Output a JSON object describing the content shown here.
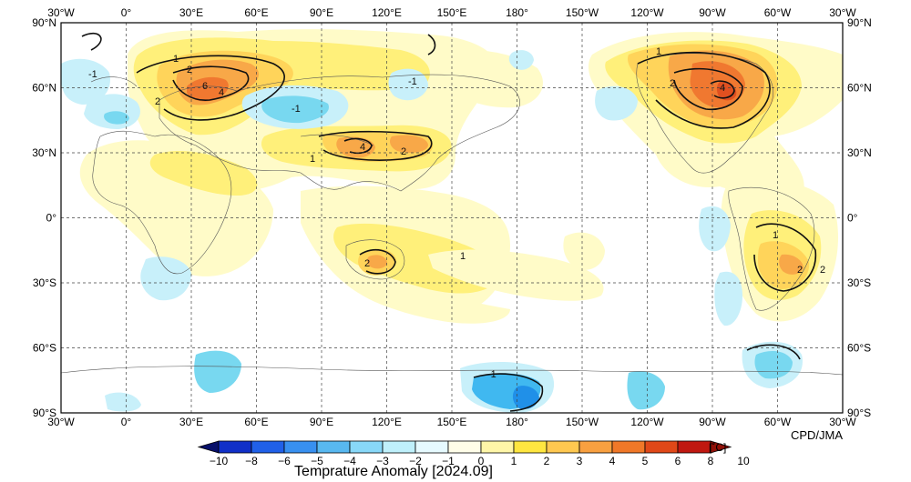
{
  "map": {
    "top_axis_labels": [
      "30°W",
      "0°",
      "30°E",
      "60°E",
      "90°E",
      "120°E",
      "150°E",
      "180°",
      "150°W",
      "120°W",
      "90°W",
      "60°W",
      "30°W"
    ],
    "bottom_axis_labels": [
      "30°W",
      "0°",
      "30°E",
      "60°E",
      "90°E",
      "120°E",
      "150°E",
      "180°",
      "150°W",
      "120°W",
      "90°W",
      "60°W",
      "30°W"
    ],
    "left_axis_labels": [
      "90°N",
      "60°N",
      "30°N",
      "0°",
      "30°S",
      "60°S",
      "90°S"
    ],
    "right_axis_labels": [
      "90°N",
      "60°N",
      "30°N",
      "0°",
      "30°S",
      "60°S",
      "90°S"
    ],
    "credit": "CPD/JMA",
    "contour_value_labels": [
      "-1",
      "1",
      "2",
      "4",
      "6",
      "2",
      "4",
      "-1",
      "-1",
      "1",
      "2",
      "4",
      "2",
      "1",
      "2",
      "1",
      "2",
      "1",
      "2",
      "-1"
    ]
  },
  "colorbar": {
    "tick_labels": [
      "−10",
      "−8",
      "−6",
      "−5",
      "−4",
      "−3",
      "−2",
      "−1",
      "0",
      "1",
      "2",
      "3",
      "4",
      "5",
      "6",
      "8",
      "10"
    ],
    "unit": "[˚C]",
    "title": "Temprature Anomaly [2024.09]",
    "colors": [
      "#08106a",
      "#1030c8",
      "#2060e8",
      "#3890f0",
      "#58b8f0",
      "#88d8f8",
      "#bff0fb",
      "#e6faff",
      "#fffde8",
      "#fff6a8",
      "#ffe640",
      "#ffc850",
      "#f8a040",
      "#f07828",
      "#e04818",
      "#c01810",
      "#901008"
    ]
  },
  "anomaly_colors": {
    "neg1": "#c8f0fa",
    "neg2": "#78d8f0",
    "neg3": "#40b8f0",
    "neg4": "#2090e8",
    "neg5": "#1060d8",
    "pos1": "#fffbc8",
    "pos2": "#fff07a",
    "pos3": "#ffd45a",
    "pos4": "#f8a848",
    "pos5": "#f07830",
    "pos6": "#e05020"
  }
}
